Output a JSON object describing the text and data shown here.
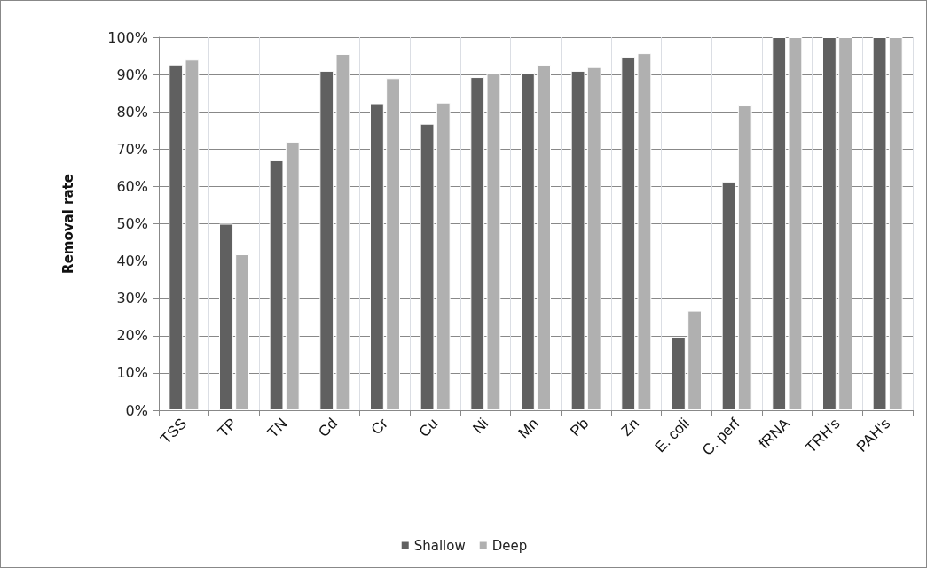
{
  "chart_data": {
    "type": "bar",
    "ylabel": "Removal rate",
    "categories": [
      "TSS",
      "TP",
      "TN",
      "Cd",
      "Cr",
      "Cu",
      "Ni",
      "Mn",
      "Pb",
      "Zn",
      "E. coli",
      "C. perf",
      "fRNA",
      "TRH's",
      "PAH's"
    ],
    "series": [
      {
        "name": "Shallow",
        "color": "#606060",
        "values": [
          92.7,
          50,
          67,
          91,
          82.3,
          76.8,
          89.3,
          90.5,
          91,
          94.8,
          19.7,
          61.2,
          100,
          100,
          100
        ]
      },
      {
        "name": "Deep",
        "color": "#b0b0b0",
        "values": [
          94,
          41.8,
          72,
          95.5,
          89,
          82.5,
          90.5,
          92.6,
          92,
          95.7,
          26.7,
          81.7,
          100,
          100,
          100
        ]
      }
    ],
    "ylim": [
      0,
      100
    ],
    "yticks": [
      {
        "value": 0,
        "label": "0%"
      },
      {
        "value": 10,
        "label": "10%"
      },
      {
        "value": 20,
        "label": "20%"
      },
      {
        "value": 30,
        "label": "30%"
      },
      {
        "value": 40,
        "label": "40%"
      },
      {
        "value": 50,
        "label": "50%"
      },
      {
        "value": 60,
        "label": "60%"
      },
      {
        "value": 70,
        "label": "70%"
      },
      {
        "value": 80,
        "label": "80%"
      },
      {
        "value": 90,
        "label": "90%"
      },
      {
        "value": 100,
        "label": "100%"
      }
    ],
    "grid": true,
    "legend": "bottom"
  }
}
